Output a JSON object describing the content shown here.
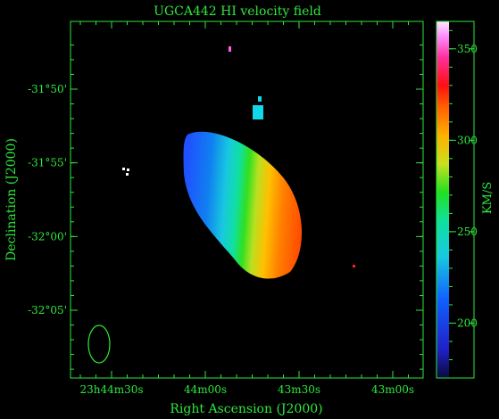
{
  "chart_data": {
    "type": "heatmap",
    "title": "UGCA442   HI velocity field",
    "xlabel": "Right Ascension (J2000)",
    "ylabel": "Declination (J2000)",
    "colorbar_label": "KM/S",
    "x_ticks": [
      {
        "label": "23h44m30s",
        "ra_sec_offset": 30
      },
      {
        "label": "44m00s",
        "ra_sec_offset": 0
      },
      {
        "label": "43m30s",
        "ra_sec_offset": -30
      },
      {
        "label": "43m00s",
        "ra_sec_offset": -60
      }
    ],
    "y_ticks": [
      {
        "label": "-31°50'",
        "dec_arcmin": -1910
      },
      {
        "label": "-31°55'",
        "dec_arcmin": -1915
      },
      {
        "label": "-32°00'",
        "dec_arcmin": -1920
      },
      {
        "label": "-32°05'",
        "dec_arcmin": -1925
      }
    ],
    "colorbar_ticks": [
      200,
      250,
      300,
      350
    ],
    "colorbar_range": [
      170,
      365
    ],
    "velocity_gradient": {
      "approaching_side": "north-east",
      "min_kms": 205,
      "max_kms": 320
    },
    "beam": "ellipse, lower-left",
    "frame_color": "#2ee83c"
  }
}
